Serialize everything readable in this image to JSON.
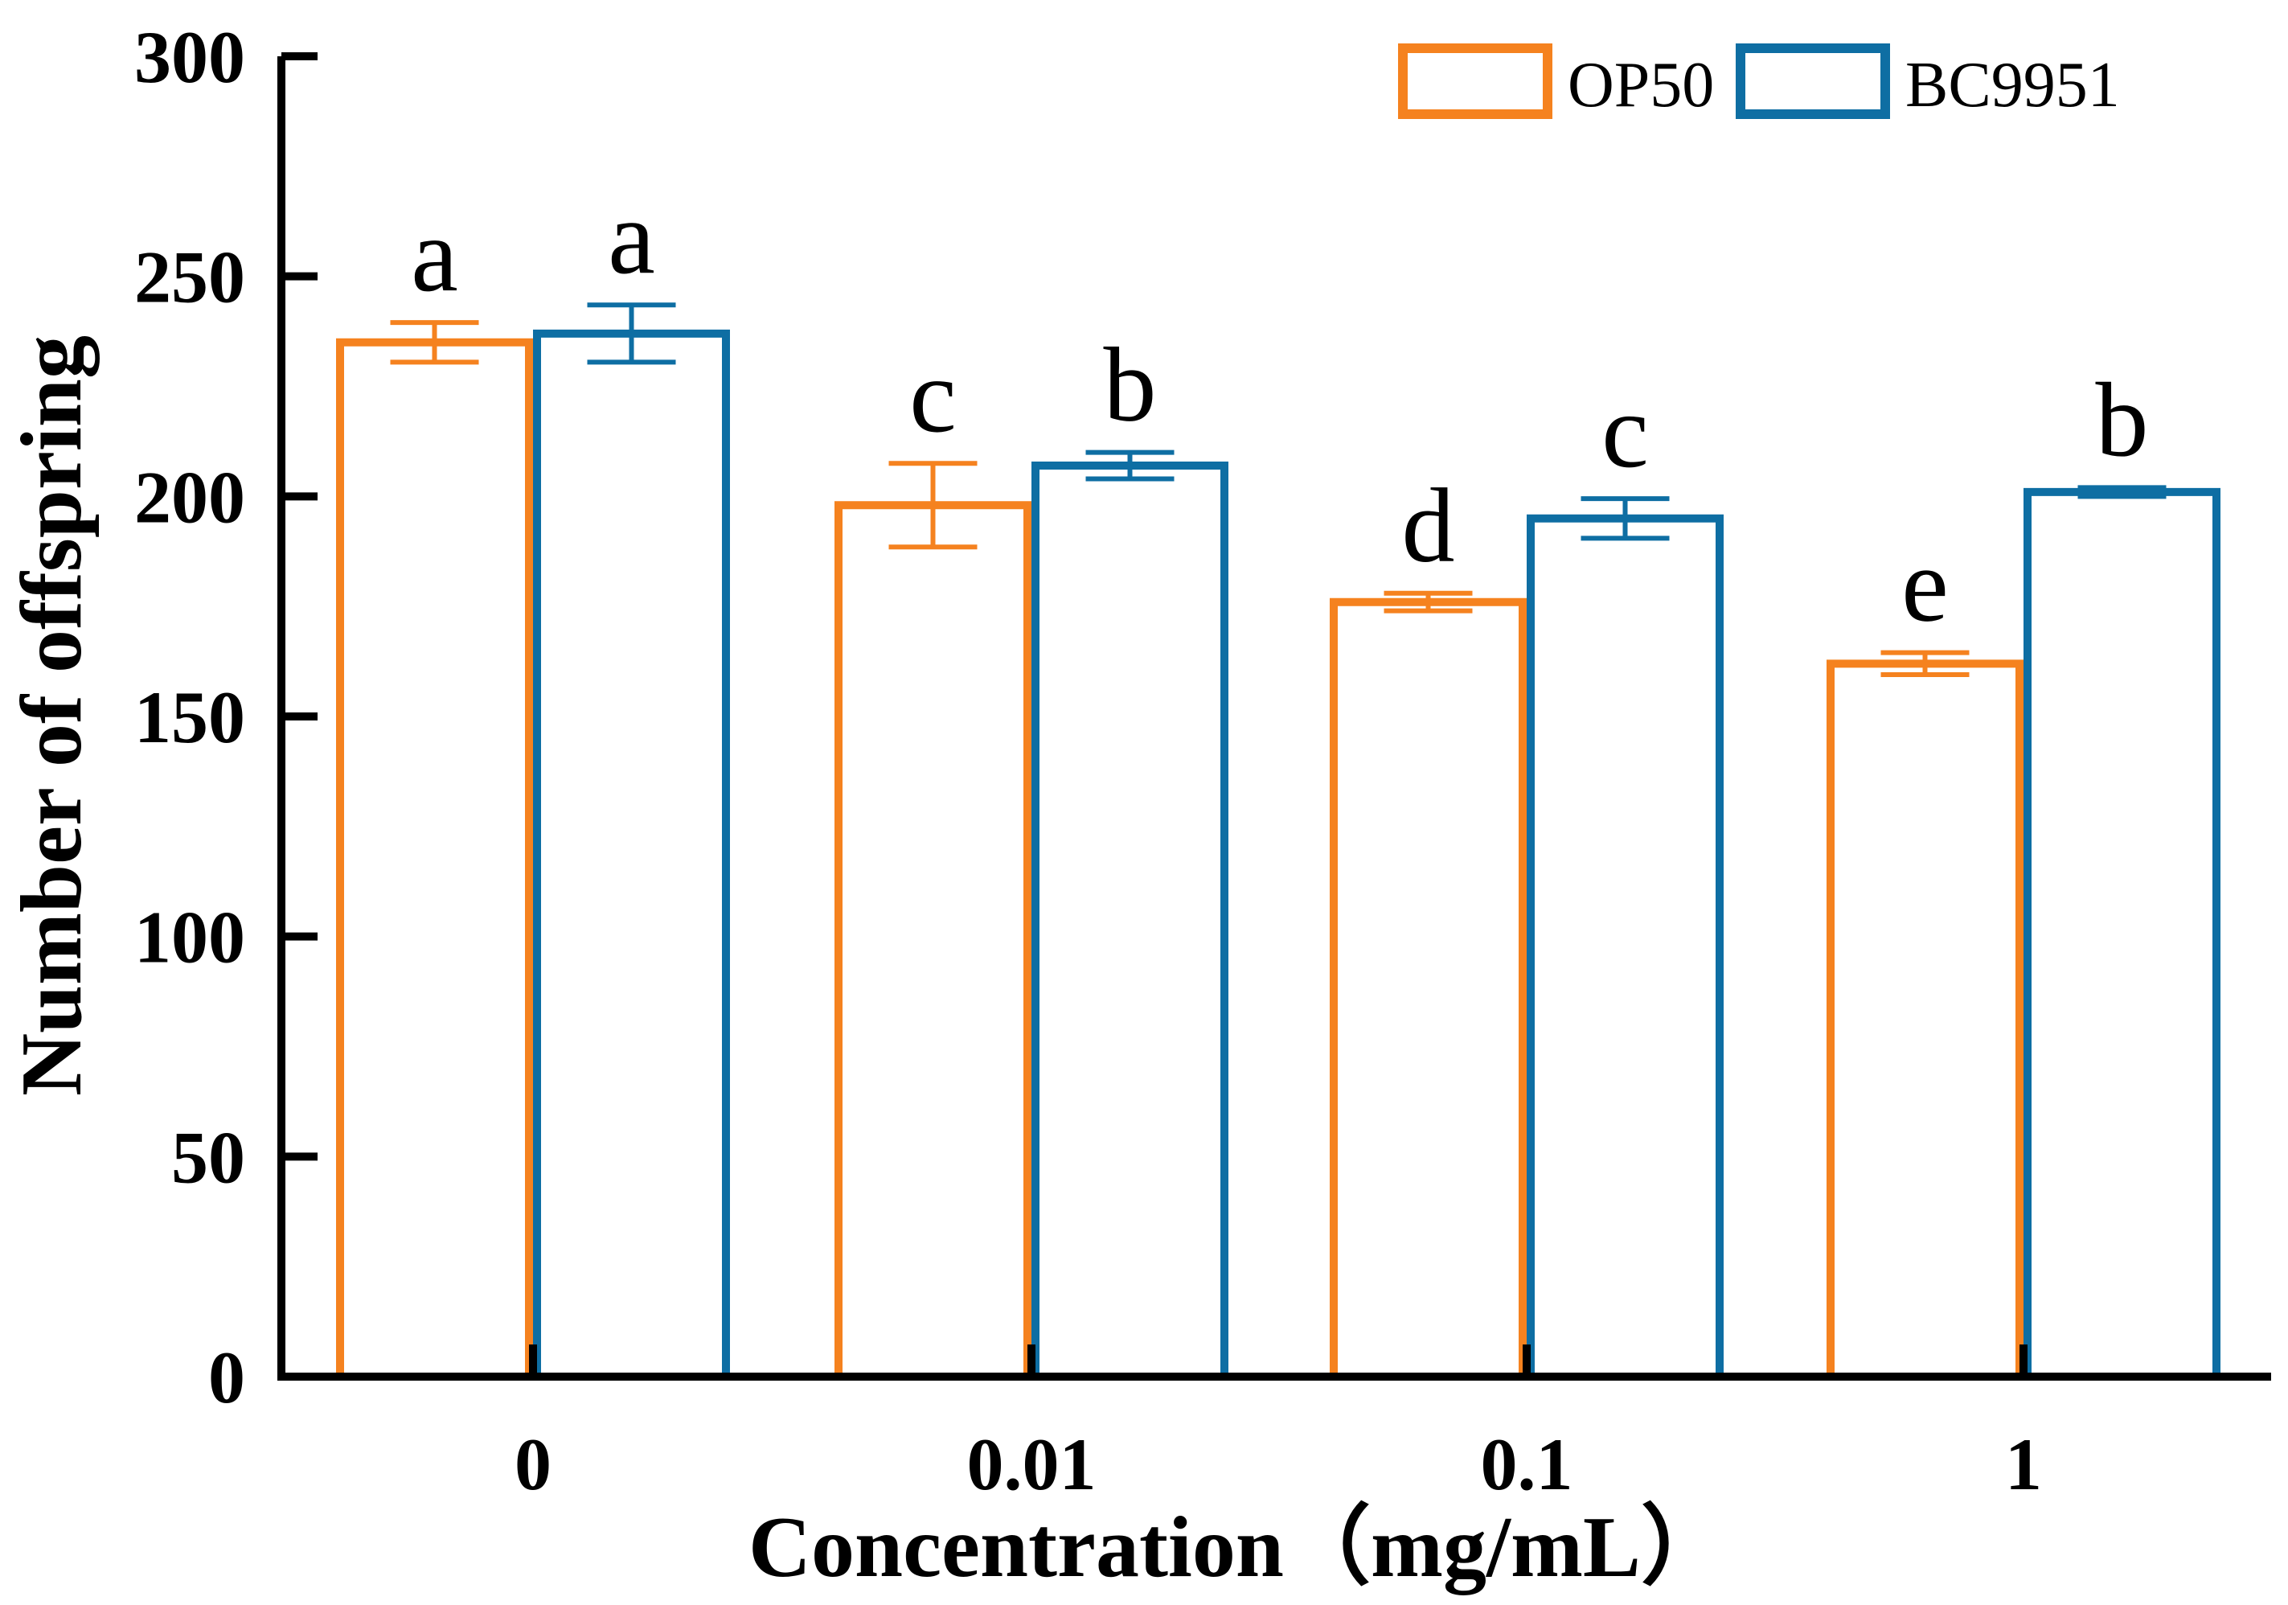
{
  "chart_data": {
    "type": "bar",
    "title": "",
    "xlabel": "Concentration（mg/mL）",
    "ylabel": "Number of offspring",
    "categories": [
      "0",
      "0.01",
      "0.1",
      "1"
    ],
    "ylim": [
      0,
      300
    ],
    "yticks": [
      0,
      50,
      100,
      150,
      200,
      250,
      300
    ],
    "grid": false,
    "legend_position": "top-right",
    "series": [
      {
        "name": "OP50",
        "color": "#F5821F",
        "values": [
          235,
          198,
          176,
          162
        ],
        "errors": [
          4.5,
          9.5,
          2.0,
          2.5
        ],
        "letters": [
          "a",
          "c",
          "d",
          "e"
        ]
      },
      {
        "name": "BC9951",
        "color": "#0E6EA3",
        "values": [
          237,
          207,
          195,
          201
        ],
        "errors": [
          6.5,
          3.0,
          4.5,
          1.0
        ],
        "letters": [
          "a",
          "b",
          "c",
          "b"
        ]
      }
    ]
  }
}
